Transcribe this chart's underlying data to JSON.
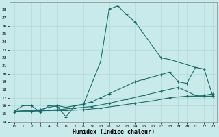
{
  "xlabel": "Humidex (Indice chaleur)",
  "bg_color": "#c8eaea",
  "grid_color": "#afd4d4",
  "line_color": "#1a6b6b",
  "xlim": [
    -0.5,
    23.5
  ],
  "ylim": [
    14,
    29
  ],
  "xticks": [
    0,
    1,
    2,
    3,
    4,
    5,
    6,
    7,
    8,
    9,
    10,
    11,
    12,
    13,
    14,
    15,
    16,
    17,
    18,
    19,
    20,
    21,
    22,
    23
  ],
  "yticks": [
    14,
    15,
    16,
    17,
    18,
    19,
    20,
    21,
    22,
    23,
    24,
    25,
    26,
    27,
    28
  ],
  "curve1_x": [
    0,
    1,
    2,
    3,
    4,
    5,
    6,
    7,
    8,
    10,
    11,
    12,
    13,
    14,
    17,
    18,
    21
  ],
  "curve1_y": [
    15.3,
    16.0,
    16.0,
    15.2,
    16.0,
    15.9,
    14.6,
    16.0,
    16.1,
    21.5,
    28.1,
    28.5,
    27.4,
    26.5,
    22.0,
    21.8,
    20.8
  ],
  "curve2_x": [
    0,
    3,
    4,
    5,
    6,
    7,
    8,
    9,
    10,
    11,
    12,
    13,
    14,
    15,
    16,
    17,
    18,
    19,
    20,
    21,
    22,
    23
  ],
  "curve2_y": [
    15.3,
    15.5,
    15.8,
    16.0,
    15.8,
    16.0,
    16.2,
    16.5,
    17.0,
    17.5,
    18.0,
    18.5,
    19.0,
    19.3,
    19.6,
    19.9,
    20.2,
    19.0,
    18.8,
    20.8,
    20.6,
    17.2
  ],
  "curve3_x": [
    0,
    3,
    5,
    7,
    9,
    11,
    13,
    15,
    17,
    19,
    21,
    22,
    23
  ],
  "curve3_y": [
    15.3,
    15.4,
    15.5,
    15.7,
    15.9,
    16.3,
    16.8,
    17.3,
    17.8,
    18.3,
    17.3,
    17.3,
    17.5
  ],
  "curve4_x": [
    0,
    2,
    4,
    6,
    8,
    10,
    12,
    14,
    16,
    18,
    20,
    22,
    23
  ],
  "curve4_y": [
    15.2,
    15.3,
    15.4,
    15.4,
    15.5,
    15.7,
    16.0,
    16.3,
    16.6,
    17.0,
    17.2,
    17.2,
    17.2
  ]
}
